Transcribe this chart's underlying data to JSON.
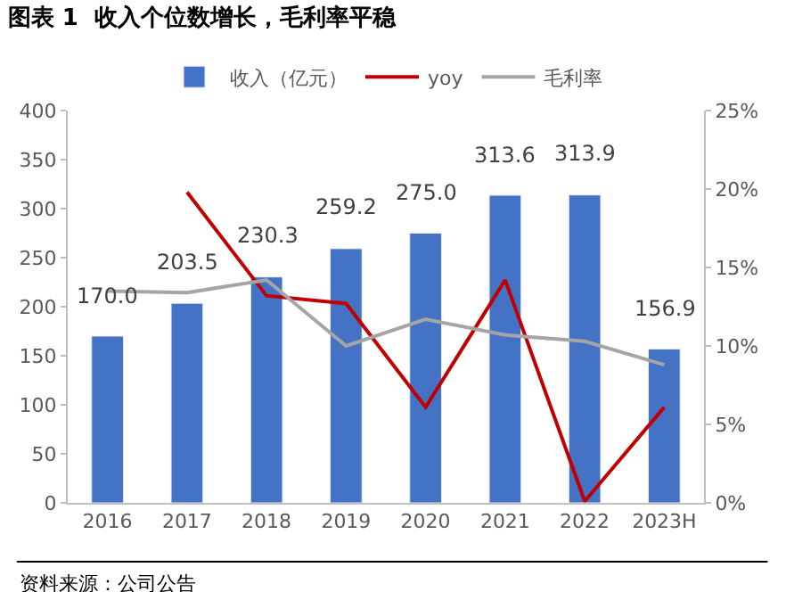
{
  "chart_data": {
    "type": "bar",
    "title": "图表 1  收入个位数增长，毛利率平稳",
    "categories": [
      "2016",
      "2017",
      "2018",
      "2019",
      "2020",
      "2021",
      "2022",
      "2023H"
    ],
    "series": [
      {
        "name": "收入（亿元）",
        "color": "#4472c4",
        "values": [
          170.0,
          203.5,
          230.3,
          259.2,
          275.0,
          313.6,
          313.9,
          156.9
        ],
        "value_labels": [
          "170.0",
          "203.5",
          "230.3",
          "259.2",
          "275.0",
          "313.6",
          "313.9",
          "156.9"
        ]
      },
      {
        "name": "yoy",
        "type": "line",
        "axis": "y2",
        "color": "#c00000",
        "values": [
          null,
          19.8,
          13.2,
          12.7,
          6.1,
          14.2,
          0.1,
          6.1
        ]
      },
      {
        "name": "毛利率",
        "type": "line",
        "axis": "y2",
        "color": "#a5a5a5",
        "values": [
          13.5,
          13.4,
          14.2,
          10.0,
          11.7,
          10.7,
          10.3,
          8.8
        ]
      }
    ],
    "ylim": [
      0,
      400
    ],
    "yticks": [
      0,
      50,
      100,
      150,
      200,
      250,
      300,
      350,
      400
    ],
    "y2lim": [
      0,
      25
    ],
    "y2ticks": [
      {
        "value": 0,
        "label": "0%"
      },
      {
        "value": 5,
        "label": "5%"
      },
      {
        "value": 10,
        "label": "10%"
      },
      {
        "value": 15,
        "label": "15%"
      },
      {
        "value": 20,
        "label": "20%"
      },
      {
        "value": 25,
        "label": "25%"
      }
    ],
    "legend": "top",
    "marker": "none",
    "annotations": [
      "资料来源：公司公告"
    ]
  }
}
